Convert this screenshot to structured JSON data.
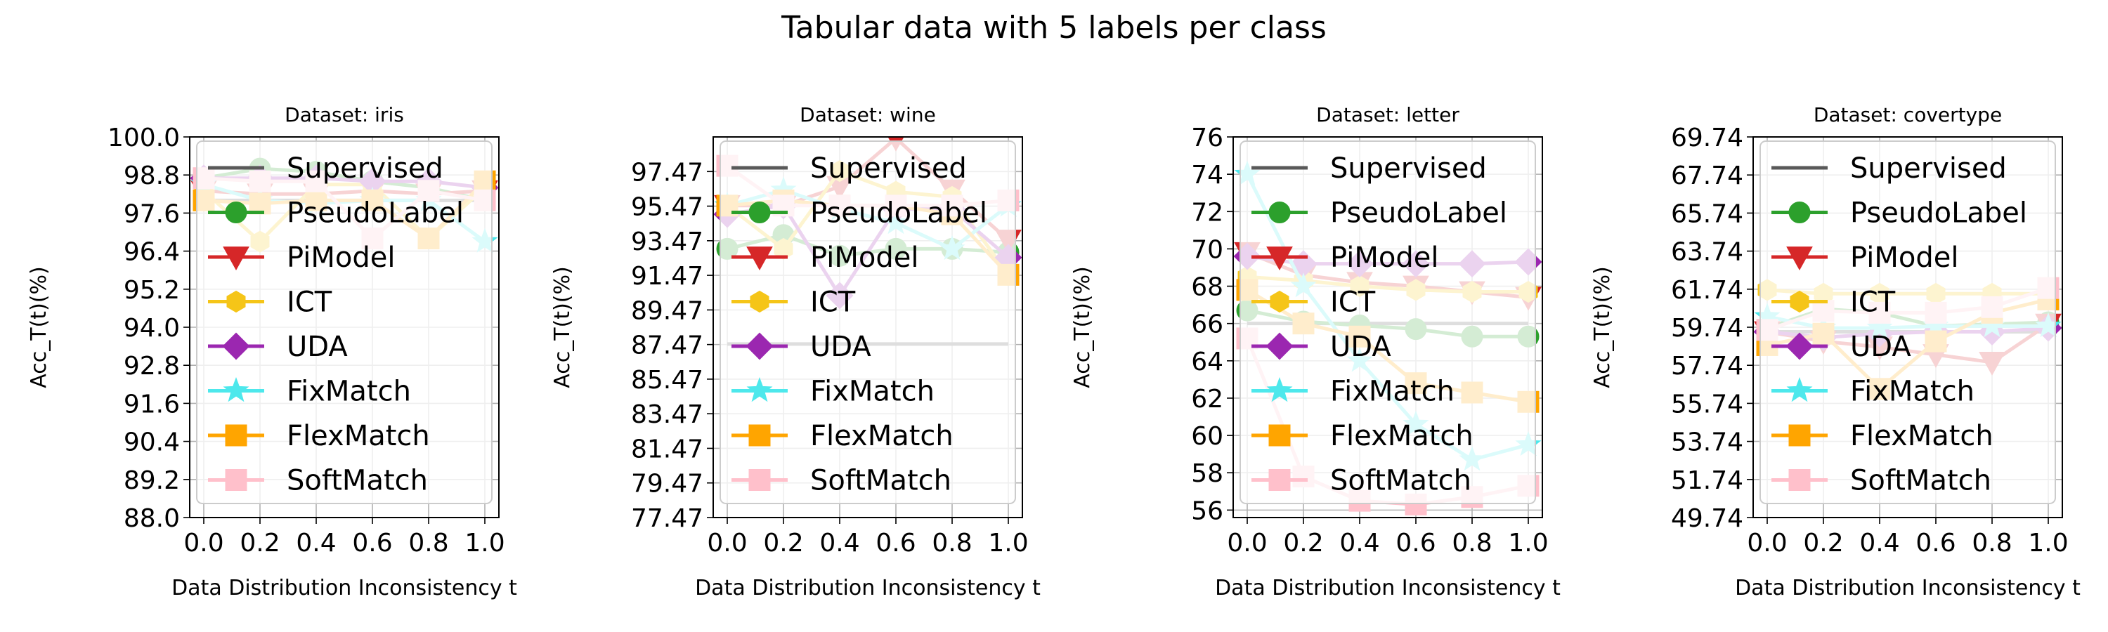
{
  "figure": {
    "title": "Tabular data with 5 labels per class"
  },
  "legend_entries": [
    {
      "name": "Supervised",
      "color": "#595959",
      "marker": "none"
    },
    {
      "name": "PseudoLabel",
      "color": "#2ca02c",
      "marker": "circle"
    },
    {
      "name": "PiModel",
      "color": "#d62728",
      "marker": "triangle-down"
    },
    {
      "name": "ICT",
      "color": "#f5c518",
      "marker": "hexagon"
    },
    {
      "name": "UDA",
      "color": "#9b27b0",
      "marker": "diamond"
    },
    {
      "name": "FixMatch",
      "color": "#4de8ec",
      "marker": "star"
    },
    {
      "name": "FlexMatch",
      "color": "#ffa500",
      "marker": "square"
    },
    {
      "name": "SoftMatch",
      "color": "#ffc0cb",
      "marker": "square"
    }
  ],
  "chart_data": [
    {
      "type": "line",
      "title": "Dataset: iris",
      "xlabel": "Data Distribution Inconsistency t",
      "ylabel": "Acc_T(t)(%)",
      "xlim": [
        -0.05,
        1.05
      ],
      "ylim": [
        88.0,
        100.0
      ],
      "xticks": [
        "0.0",
        "0.2",
        "0.4",
        "0.6",
        "0.8",
        "1.0"
      ],
      "yticks": [
        "88.0",
        "89.2",
        "90.4",
        "91.6",
        "92.8",
        "94.0",
        "95.2",
        "96.4",
        "97.6",
        "98.8",
        "100.0"
      ],
      "legend_position": "upper-left",
      "grid": true,
      "x": [
        0.0,
        0.2,
        0.4,
        0.6,
        0.8,
        1.0
      ],
      "series": [
        {
          "name": "Supervised",
          "values": [
            98.0,
            98.0,
            98.0,
            98.0,
            98.0,
            98.0
          ]
        },
        {
          "name": "PseudoLabel",
          "values": [
            98.7,
            99.0,
            98.9,
            98.6,
            98.4,
            98.0
          ]
        },
        {
          "name": "PiModel",
          "values": [
            98.3,
            98.2,
            98.2,
            98.3,
            98.2,
            98.3
          ]
        },
        {
          "name": "ICT",
          "values": [
            98.3,
            96.7,
            98.5,
            98.5,
            96.8,
            98.4
          ]
        },
        {
          "name": "UDA",
          "values": [
            98.7,
            98.7,
            98.7,
            98.6,
            98.6,
            98.4
          ]
        },
        {
          "name": "FixMatch",
          "values": [
            98.5,
            98.0,
            97.9,
            98.0,
            98.0,
            96.7
          ]
        },
        {
          "name": "FlexMatch",
          "values": [
            98.0,
            97.9,
            98.0,
            98.0,
            96.8,
            98.6
          ]
        },
        {
          "name": "SoftMatch",
          "values": [
            98.7,
            98.6,
            98.6,
            96.8,
            98.3,
            98.0
          ]
        }
      ]
    },
    {
      "type": "line",
      "title": "Dataset: wine",
      "xlabel": "Data Distribution Inconsistency t",
      "ylabel": "Acc_T(t)(%)",
      "xlim": [
        -0.05,
        1.05
      ],
      "ylim": [
        77.47,
        99.47
      ],
      "xticks": [
        "0.0",
        "0.2",
        "0.4",
        "0.6",
        "0.8",
        "1.0"
      ],
      "yticks": [
        "77.47",
        "79.47",
        "81.47",
        "83.47",
        "85.47",
        "87.47",
        "89.47",
        "91.47",
        "93.47",
        "95.47",
        "97.47"
      ],
      "legend_position": "upper-left",
      "grid": true,
      "x": [
        0.0,
        0.2,
        0.4,
        0.6,
        0.8,
        1.0
      ],
      "series": [
        {
          "name": "Supervised",
          "values": [
            87.5,
            87.5,
            87.5,
            87.5,
            87.5,
            87.5
          ]
        },
        {
          "name": "PseudoLabel",
          "values": [
            93.0,
            93.8,
            92.6,
            93.0,
            93.0,
            92.8
          ]
        },
        {
          "name": "PiModel",
          "values": [
            95.5,
            95.5,
            96.6,
            99.4,
            96.4,
            93.5
          ]
        },
        {
          "name": "ICT",
          "values": [
            95.5,
            93.0,
            97.5,
            96.3,
            96.0,
            91.5
          ]
        },
        {
          "name": "UDA",
          "values": [
            95.0,
            95.5,
            90.3,
            95.3,
            95.3,
            92.5
          ]
        },
        {
          "name": "FixMatch",
          "values": [
            95.5,
            96.4,
            95.3,
            94.5,
            93.0,
            95.5
          ]
        },
        {
          "name": "FlexMatch",
          "values": [
            95.5,
            95.8,
            95.5,
            95.5,
            95.0,
            91.5
          ]
        },
        {
          "name": "SoftMatch",
          "values": [
            97.8,
            95.5,
            95.5,
            95.5,
            95.5,
            95.8
          ]
        }
      ]
    },
    {
      "type": "line",
      "title": "Dataset: letter",
      "xlabel": "Data Distribution Inconsistency t",
      "ylabel": "Acc_T(t)(%)",
      "xlim": [
        -0.05,
        1.05
      ],
      "ylim": [
        55.6,
        76.0
      ],
      "xticks": [
        "0.0",
        "0.2",
        "0.4",
        "0.6",
        "0.8",
        "1.0"
      ],
      "yticks": [
        "56",
        "58",
        "60",
        "62",
        "64",
        "66",
        "68",
        "70",
        "72",
        "74",
        "76"
      ],
      "legend_position": "upper-left",
      "grid": true,
      "x": [
        0.0,
        0.2,
        0.4,
        0.6,
        0.8,
        1.0
      ],
      "series": [
        {
          "name": "Supervised",
          "values": [
            66.0,
            66.0,
            66.0,
            66.0,
            66.0,
            66.0
          ]
        },
        {
          "name": "PseudoLabel",
          "values": [
            66.7,
            66.1,
            65.9,
            65.7,
            65.3,
            65.3
          ]
        },
        {
          "name": "PiModel",
          "values": [
            69.8,
            68.6,
            68.2,
            68.0,
            67.7,
            67.4
          ]
        },
        {
          "name": "ICT",
          "values": [
            68.5,
            68.3,
            68.0,
            67.8,
            67.7,
            67.7
          ]
        },
        {
          "name": "UDA",
          "values": [
            69.6,
            69.2,
            69.2,
            69.2,
            69.2,
            69.3
          ]
        },
        {
          "name": "FixMatch",
          "values": [
            74.0,
            68.0,
            64.0,
            60.6,
            58.7,
            59.5
          ]
        },
        {
          "name": "FlexMatch",
          "values": [
            67.8,
            66.0,
            65.3,
            62.8,
            62.3,
            61.8
          ]
        },
        {
          "name": "SoftMatch",
          "values": [
            65.2,
            57.8,
            56.5,
            56.3,
            56.7,
            57.3
          ]
        }
      ]
    },
    {
      "type": "line",
      "title": "Dataset: covertype",
      "xlabel": "Data Distribution Inconsistency t",
      "ylabel": "Acc_T(t)(%)",
      "xlim": [
        -0.05,
        1.05
      ],
      "ylim": [
        49.74,
        69.74
      ],
      "xticks": [
        "0.0",
        "0.2",
        "0.4",
        "0.6",
        "0.8",
        "1.0"
      ],
      "yticks": [
        "49.74",
        "51.74",
        "53.74",
        "55.74",
        "57.74",
        "59.74",
        "61.74",
        "63.74",
        "65.74",
        "67.74",
        "69.74"
      ],
      "legend_position": "upper-left",
      "grid": true,
      "x": [
        0.0,
        0.2,
        0.4,
        0.6,
        0.8,
        1.0
      ],
      "series": [
        {
          "name": "Supervised",
          "values": [
            59.5,
            59.5,
            59.5,
            59.5,
            59.5,
            59.5
          ]
        },
        {
          "name": "PseudoLabel",
          "values": [
            59.7,
            60.7,
            60.5,
            59.8,
            59.9,
            60.0
          ]
        },
        {
          "name": "PiModel",
          "values": [
            59.5,
            59.0,
            58.7,
            58.3,
            57.9,
            59.9
          ]
        },
        {
          "name": "ICT",
          "values": [
            61.7,
            61.5,
            61.5,
            61.5,
            61.5,
            61.5
          ]
        },
        {
          "name": "UDA",
          "values": [
            59.5,
            59.2,
            59.4,
            59.5,
            59.5,
            59.7
          ]
        },
        {
          "name": "FixMatch",
          "values": [
            60.3,
            59.7,
            59.7,
            59.8,
            59.8,
            59.8
          ]
        },
        {
          "name": "FlexMatch",
          "values": [
            58.8,
            59.4,
            56.5,
            59.0,
            60.5,
            61.2
          ]
        },
        {
          "name": "SoftMatch",
          "values": [
            59.6,
            60.6,
            60.5,
            60.5,
            60.8,
            61.8
          ]
        }
      ]
    }
  ]
}
